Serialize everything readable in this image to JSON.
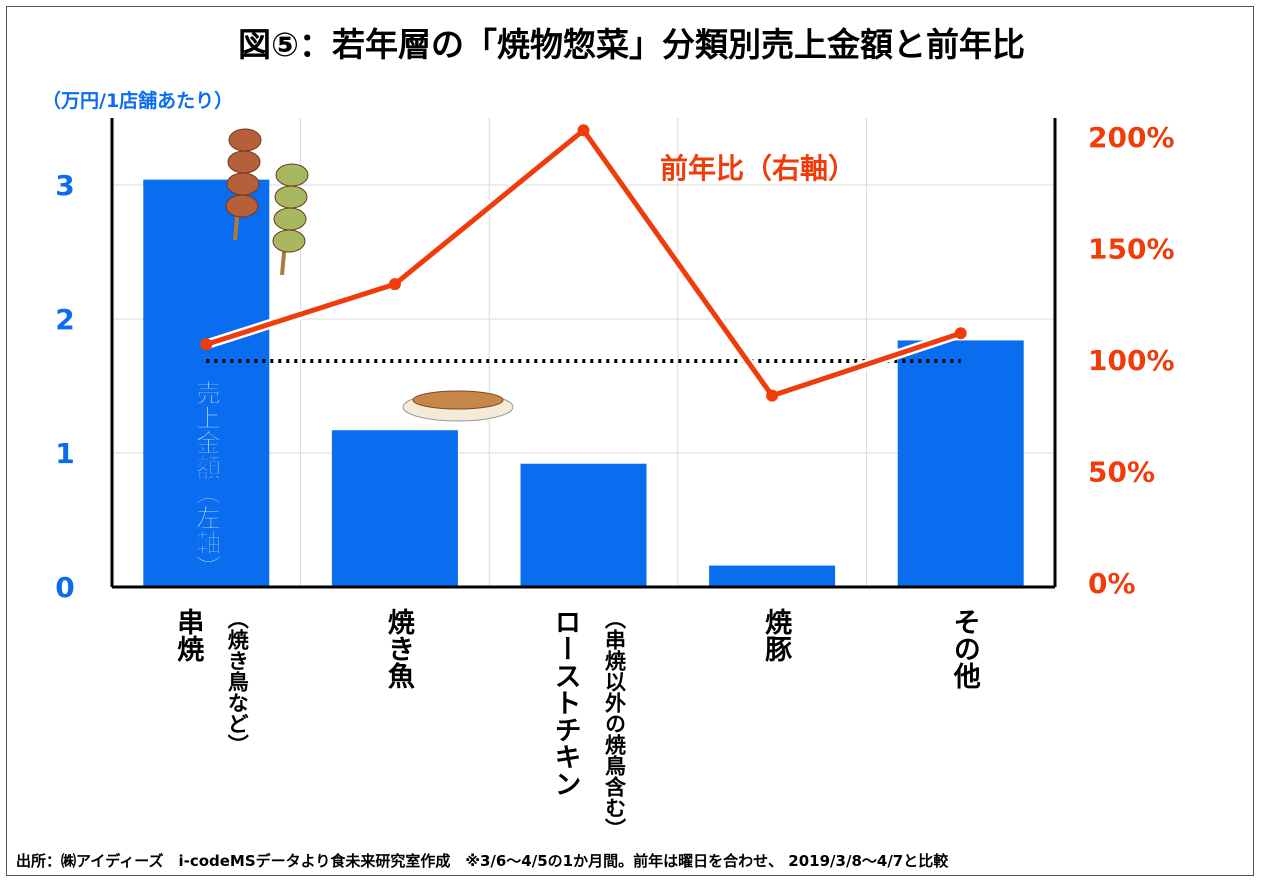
{
  "title": "図⑤：若年層の「焼物惣菜」分類別売上金額と前年比",
  "footer": "出所：㈱アイディーズ　i-codeMSデータより食未来研究室作成　※3/6～4/5の1か月間。前年は曜日を合わせ、 2019/3/8～4/7と比較",
  "chart_data": {
    "type": "bar+line",
    "title": "図⑤：若年層の「焼物惣菜」分類別売上金額と前年比",
    "y_left_label": "（万円/1店舗あたり）",
    "y_left_ticks": [
      "0",
      "1",
      "2",
      "3"
    ],
    "y_left_range": [
      0,
      3.3
    ],
    "y_right_ticks": [
      "0%",
      "50%",
      "100%",
      "150%",
      "200%"
    ],
    "y_right_range": [
      0,
      200
    ],
    "categories": [
      {
        "name": "串焼",
        "note": "（焼き鳥など）"
      },
      {
        "name": "焼き魚",
        "note": ""
      },
      {
        "name": "ローストチキン",
        "note": "（串焼以外の焼鳥含む）"
      },
      {
        "name": "焼豚",
        "note": ""
      },
      {
        "name": "その他",
        "note": ""
      }
    ],
    "series": [
      {
        "name": "売上金額（左軸）",
        "type": "bar",
        "axis": "left",
        "color": "#0a6df0",
        "values": [
          3.04,
          1.17,
          0.92,
          0.16,
          1.84
        ]
      },
      {
        "name": "前年比（右軸）",
        "type": "line",
        "axis": "right",
        "color": "#f03c0a",
        "values": [
          107,
          134,
          203,
          84,
          112
        ]
      }
    ],
    "reference_line": {
      "value": 100,
      "axis": "right",
      "style": "dotted"
    },
    "grid": true
  }
}
